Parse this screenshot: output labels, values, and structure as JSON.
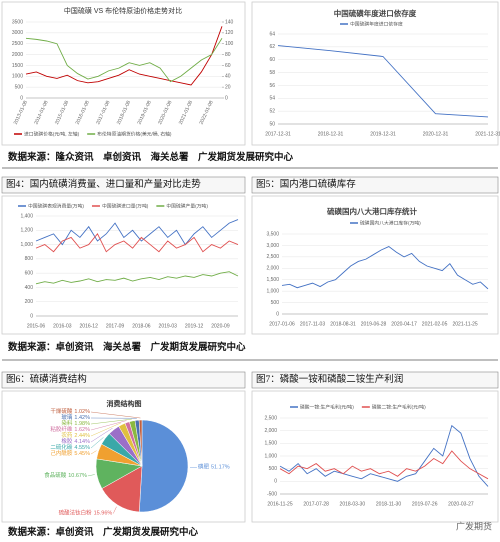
{
  "sources": [
    "数据来源：隆众资讯　卓创资讯　海关总署　广发期货发展研究中心",
    "数据来源：卓创资讯　海关总署　广发期货发展研究中心",
    "数据来源：卓创资讯　广发期货发展研究中心"
  ],
  "captions": [
    "图4：国内硫磺消费量、进口量和产量对比走势",
    "图5：国内港口硫磺库存",
    "图6：硫磺消费结构",
    "图7：磷酸一铵和磷酸二铵生产利润"
  ],
  "watermark": "广发期货",
  "chart_data": [
    {
      "type": "line",
      "title": "中国硫磺 VS 布伦特原油价格走势对比",
      "categories": [
        "2013-01-08",
        null,
        "2014-01-08",
        null,
        "2015-01-08",
        null,
        "2016-01-08",
        null,
        "2017-01-08",
        null,
        "2018-01-08",
        null,
        "2019-01-08",
        null,
        "2020-01-08",
        null,
        "2021-01-08",
        null,
        "2022-01-08",
        null
      ],
      "series": [
        {
          "name": "进口硫磺价格(元/吨, 左轴)",
          "color": "#c00000",
          "values": [
            1100,
            1200,
            1000,
            900,
            1050,
            800,
            700,
            750,
            900,
            1050,
            1300,
            1100,
            1000,
            900,
            800,
            700,
            600,
            1200,
            2000,
            3300
          ]
        },
        {
          "name": "布伦特原油期货价格(美元/桶, 右轴)",
          "color": "#70ad47",
          "axis": "y2",
          "values": [
            110,
            108,
            105,
            100,
            60,
            45,
            35,
            40,
            50,
            55,
            65,
            60,
            65,
            55,
            30,
            40,
            55,
            70,
            80,
            110
          ]
        }
      ],
      "ylim": [
        0,
        3500
      ],
      "yticks": [
        0,
        500,
        1000,
        1500,
        2000,
        2500,
        3000,
        3500
      ],
      "y2lim": [
        0,
        140
      ],
      "y2ticks": [
        0,
        20,
        40,
        60,
        80,
        100,
        120,
        140
      ],
      "grid": true
    },
    {
      "type": "line",
      "title": "中国硫磺年度进口依存度",
      "categories": [
        "2017-12-31",
        "2018-12-31",
        "2019-12-31",
        "2020-12-31",
        "2021-12-31"
      ],
      "series": [
        {
          "name": "中国硫磺年度进口依存度",
          "color": "#4472c4",
          "values": [
            62.2,
            61.4,
            60.5,
            51.6,
            51.1
          ]
        }
      ],
      "ylim": [
        50,
        64
      ],
      "yticks": [
        50,
        52,
        54,
        56,
        58,
        60,
        62,
        64
      ],
      "grid": true
    },
    {
      "type": "line",
      "categories": [
        "2015-06",
        null,
        null,
        "2016-03",
        null,
        null,
        "2016-12",
        null,
        null,
        "2017-09",
        null,
        null,
        "2018-06",
        null,
        null,
        "2019-03",
        null,
        null,
        "2019-12",
        null,
        null,
        "2020-09",
        null,
        null
      ],
      "series": [
        {
          "name": "中国硫磺表观消费量(万吨)",
          "color": "#4472c4",
          "values": [
            1050,
            1100,
            1150,
            1000,
            1200,
            1100,
            1250,
            1050,
            1150,
            1300,
            1100,
            1200,
            1050,
            1150,
            1250,
            1100,
            1200,
            1000,
            1150,
            1250,
            1100,
            1200,
            1300,
            1350
          ]
        },
        {
          "name": "中国硫磺进口量(万吨)",
          "color": "#e05050",
          "values": [
            950,
            1000,
            900,
            1050,
            1100,
            950,
            1000,
            1150,
            900,
            1000,
            1050,
            950,
            1100,
            1000,
            900,
            1050,
            950,
            1000,
            1100,
            900,
            1000,
            950,
            1050,
            1000
          ]
        },
        {
          "name": "中国硫磺产量(万吨)",
          "color": "#70ad47",
          "values": [
            450,
            480,
            460,
            500,
            470,
            490,
            520,
            480,
            510,
            500,
            530,
            490,
            520,
            540,
            510,
            550,
            530,
            560,
            540,
            580,
            560,
            600,
            620,
            560
          ]
        }
      ],
      "ylim": [
        0,
        1400
      ],
      "yticks": [
        0,
        200,
        400,
        600,
        800,
        {
          "value": 1000,
          "label": "1,000"
        },
        {
          "value": 1200,
          "label": "1,200"
        },
        {
          "value": 1400,
          "label": "1,400"
        }
      ],
      "grid": true
    },
    {
      "type": "line",
      "title": "硫磺国内八大港口库存统计",
      "categories": [
        "2017-01-06",
        null,
        null,
        null,
        "2017-11-03",
        null,
        null,
        null,
        "2018-08-31",
        null,
        null,
        null,
        "2019-06-28",
        null,
        null,
        null,
        "2020-04-17",
        null,
        null,
        null,
        "2021-02-05",
        null,
        null,
        null,
        "2021-11-25",
        null,
        null,
        null
      ],
      "series": [
        {
          "name": "硫磺国内八大港口库存(万吨)",
          "color": "#4472c4",
          "values": [
            1250,
            1300,
            1150,
            1250,
            1350,
            1200,
            1400,
            1500,
            1800,
            2100,
            2300,
            2400,
            2600,
            2800,
            2950,
            2700,
            2500,
            2650,
            2300,
            2100,
            2000,
            1900,
            2200,
            1700,
            1500,
            1300,
            1400,
            1100
          ]
        }
      ],
      "ylim": [
        0,
        3500
      ],
      "yticks": [
        0,
        500,
        {
          "value": 1000,
          "label": "1,000"
        },
        {
          "value": 1500,
          "label": "1,500"
        },
        {
          "value": 2000,
          "label": "2,000"
        },
        {
          "value": 2500,
          "label": "2,500"
        },
        {
          "value": 3000,
          "label": "3,000"
        },
        {
          "value": 3500,
          "label": "3,500"
        }
      ],
      "grid": true
    },
    {
      "type": "pie",
      "title": "消费结构图",
      "categories": [
        "磷肥",
        "硫酸法钛白粉",
        "食品硫酸",
        "己内酰胺",
        "二硫化碳",
        "橡胶",
        "农药",
        "粘胶纤维",
        "染料",
        "玻璃",
        "干燥硫酸"
      ],
      "values": [
        51.17,
        15.96,
        10.67,
        5.45,
        4.55,
        4.14,
        2.44,
        1.62,
        1.98,
        1.42,
        1.02
      ],
      "value_labels": [
        "51.17%",
        "15.96%",
        "10.67%",
        "5.45%",
        "4.55%",
        "4.14%",
        "2.44%",
        "1.62%",
        "1.98%",
        "1.42%",
        "1.02%"
      ],
      "colors": [
        "#5b8fd8",
        "#e05a5a",
        "#5fb35f",
        "#f0a030",
        "#3aa8a8",
        "#9b6fc8",
        "#e0c040",
        "#d070a0",
        "#8ab840",
        "#4a70b0",
        "#c06040"
      ]
    },
    {
      "type": "line",
      "categories": [
        "2016-11-25",
        null,
        null,
        null,
        "2017-07-28",
        null,
        null,
        null,
        "2018-03-30",
        null,
        null,
        null,
        "2018-11-30",
        null,
        null,
        null,
        "2019-07-26",
        null,
        null,
        null,
        "2020-03-27",
        null,
        null,
        null
      ],
      "series": [
        {
          "name": "磷酸一铵:生产毛利(元/吨)",
          "color": "#4472c4",
          "values": [
            600,
            400,
            700,
            300,
            500,
            200,
            400,
            300,
            200,
            100,
            300,
            200,
            100,
            0,
            200,
            300,
            800,
            1300,
            1000,
            2200,
            1900,
            900,
            200,
            -200
          ]
        },
        {
          "name": "磷酸二铵:生产毛利(元/吨)",
          "color": "#e05050",
          "values": [
            500,
            300,
            600,
            500,
            700,
            400,
            500,
            300,
            600,
            400,
            500,
            300,
            400,
            200,
            500,
            400,
            600,
            900,
            700,
            1200,
            800,
            500,
            300,
            100
          ]
        }
      ],
      "ylim": [
        -500,
        2500
      ],
      "yticks": [
        -500,
        0,
        500,
        {
          "value": 1000,
          "label": "1,000"
        },
        {
          "value": 1500,
          "label": "1,500"
        },
        {
          "value": 2000,
          "label": "2,000"
        },
        {
          "value": 2500,
          "label": "2,500"
        }
      ],
      "grid": true
    }
  ]
}
